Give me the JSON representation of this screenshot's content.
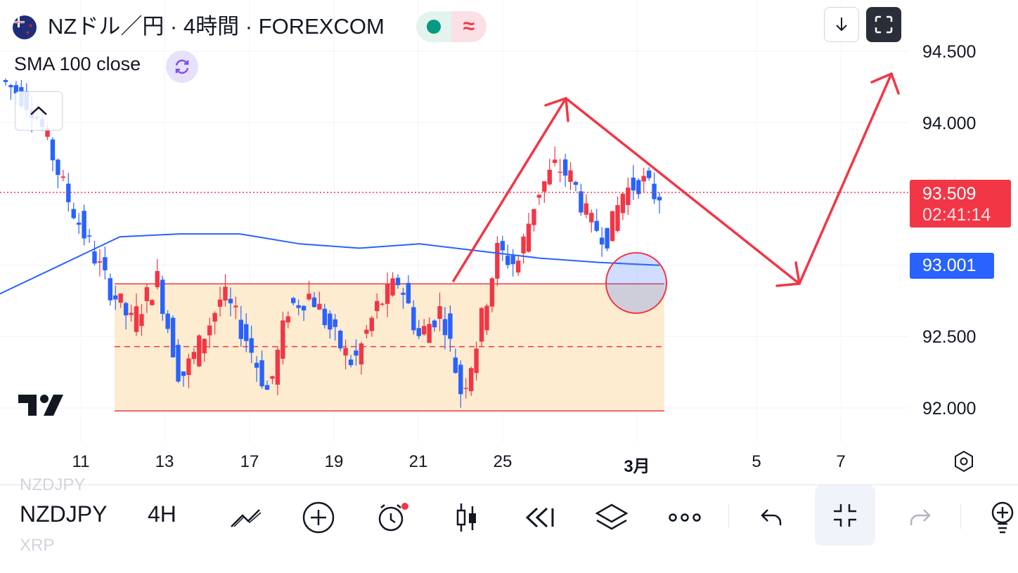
{
  "header": {
    "title": "NZドル／円 · 4時間 · FOREXCOM",
    "flag_icon": "new-zealand-flag-icon",
    "status_icons": [
      "market-open-dot-icon",
      "delayed-data-icon"
    ],
    "status_symbol": "≈",
    "indicator_label": "SMA 100 close",
    "indicator_icon": "refresh-icon",
    "collapse_icon": "chevron-up-icon",
    "download_icon": "download-arrow-icon",
    "fullscreen_icon": "fullscreen-icon"
  },
  "price_axis": {
    "labels": [
      "94.500",
      "94.000",
      "92.500",
      "92.000"
    ],
    "last_price": "93.509",
    "countdown": "02:41:14",
    "sma_value": "93.001",
    "settings_icon": "gear-hexagon-icon"
  },
  "time_axis": {
    "labels": [
      "11",
      "13",
      "17",
      "19",
      "21",
      "25",
      "3月",
      "5",
      "7"
    ]
  },
  "colors": {
    "up": "#f23645",
    "down": "#2962ff",
    "sma": "#2962ff",
    "range_fill": "#fde9c8",
    "annotation": "#f23645"
  },
  "chart_data": {
    "type": "candlestick",
    "symbol": "NZDJPY",
    "interval": "4H",
    "y_range": [
      91.8,
      94.8
    ],
    "x_ticks": [
      "11",
      "13",
      "17",
      "19",
      "21",
      "25",
      "3月",
      "5",
      "7"
    ],
    "last_price": 93.509,
    "sma_100_last": 93.001,
    "range_box": {
      "top": 92.87,
      "bottom": 91.98,
      "mid": 92.43
    },
    "series": [
      {
        "name": "SMA 100 close",
        "values": [
          92.8,
          93.0,
          93.2,
          93.22,
          93.22,
          93.15,
          93.12,
          93.15,
          93.1,
          93.05,
          93.02,
          93.0
        ]
      }
    ]
  },
  "toolbar": {
    "symbol": "NZDJPY",
    "interval": "4H",
    "ghost_above": "NZDJPY",
    "ghost_below": "XRP",
    "icons": [
      "drawing-tools-icon",
      "add-icon",
      "alert-clock-icon",
      "candlestick-icon",
      "replay-icon",
      "layers-icon",
      "more-icon",
      "undo-icon",
      "minimize-icon",
      "redo-icon",
      "idea-bulb-icon"
    ]
  },
  "logo": "tradingview-logo"
}
